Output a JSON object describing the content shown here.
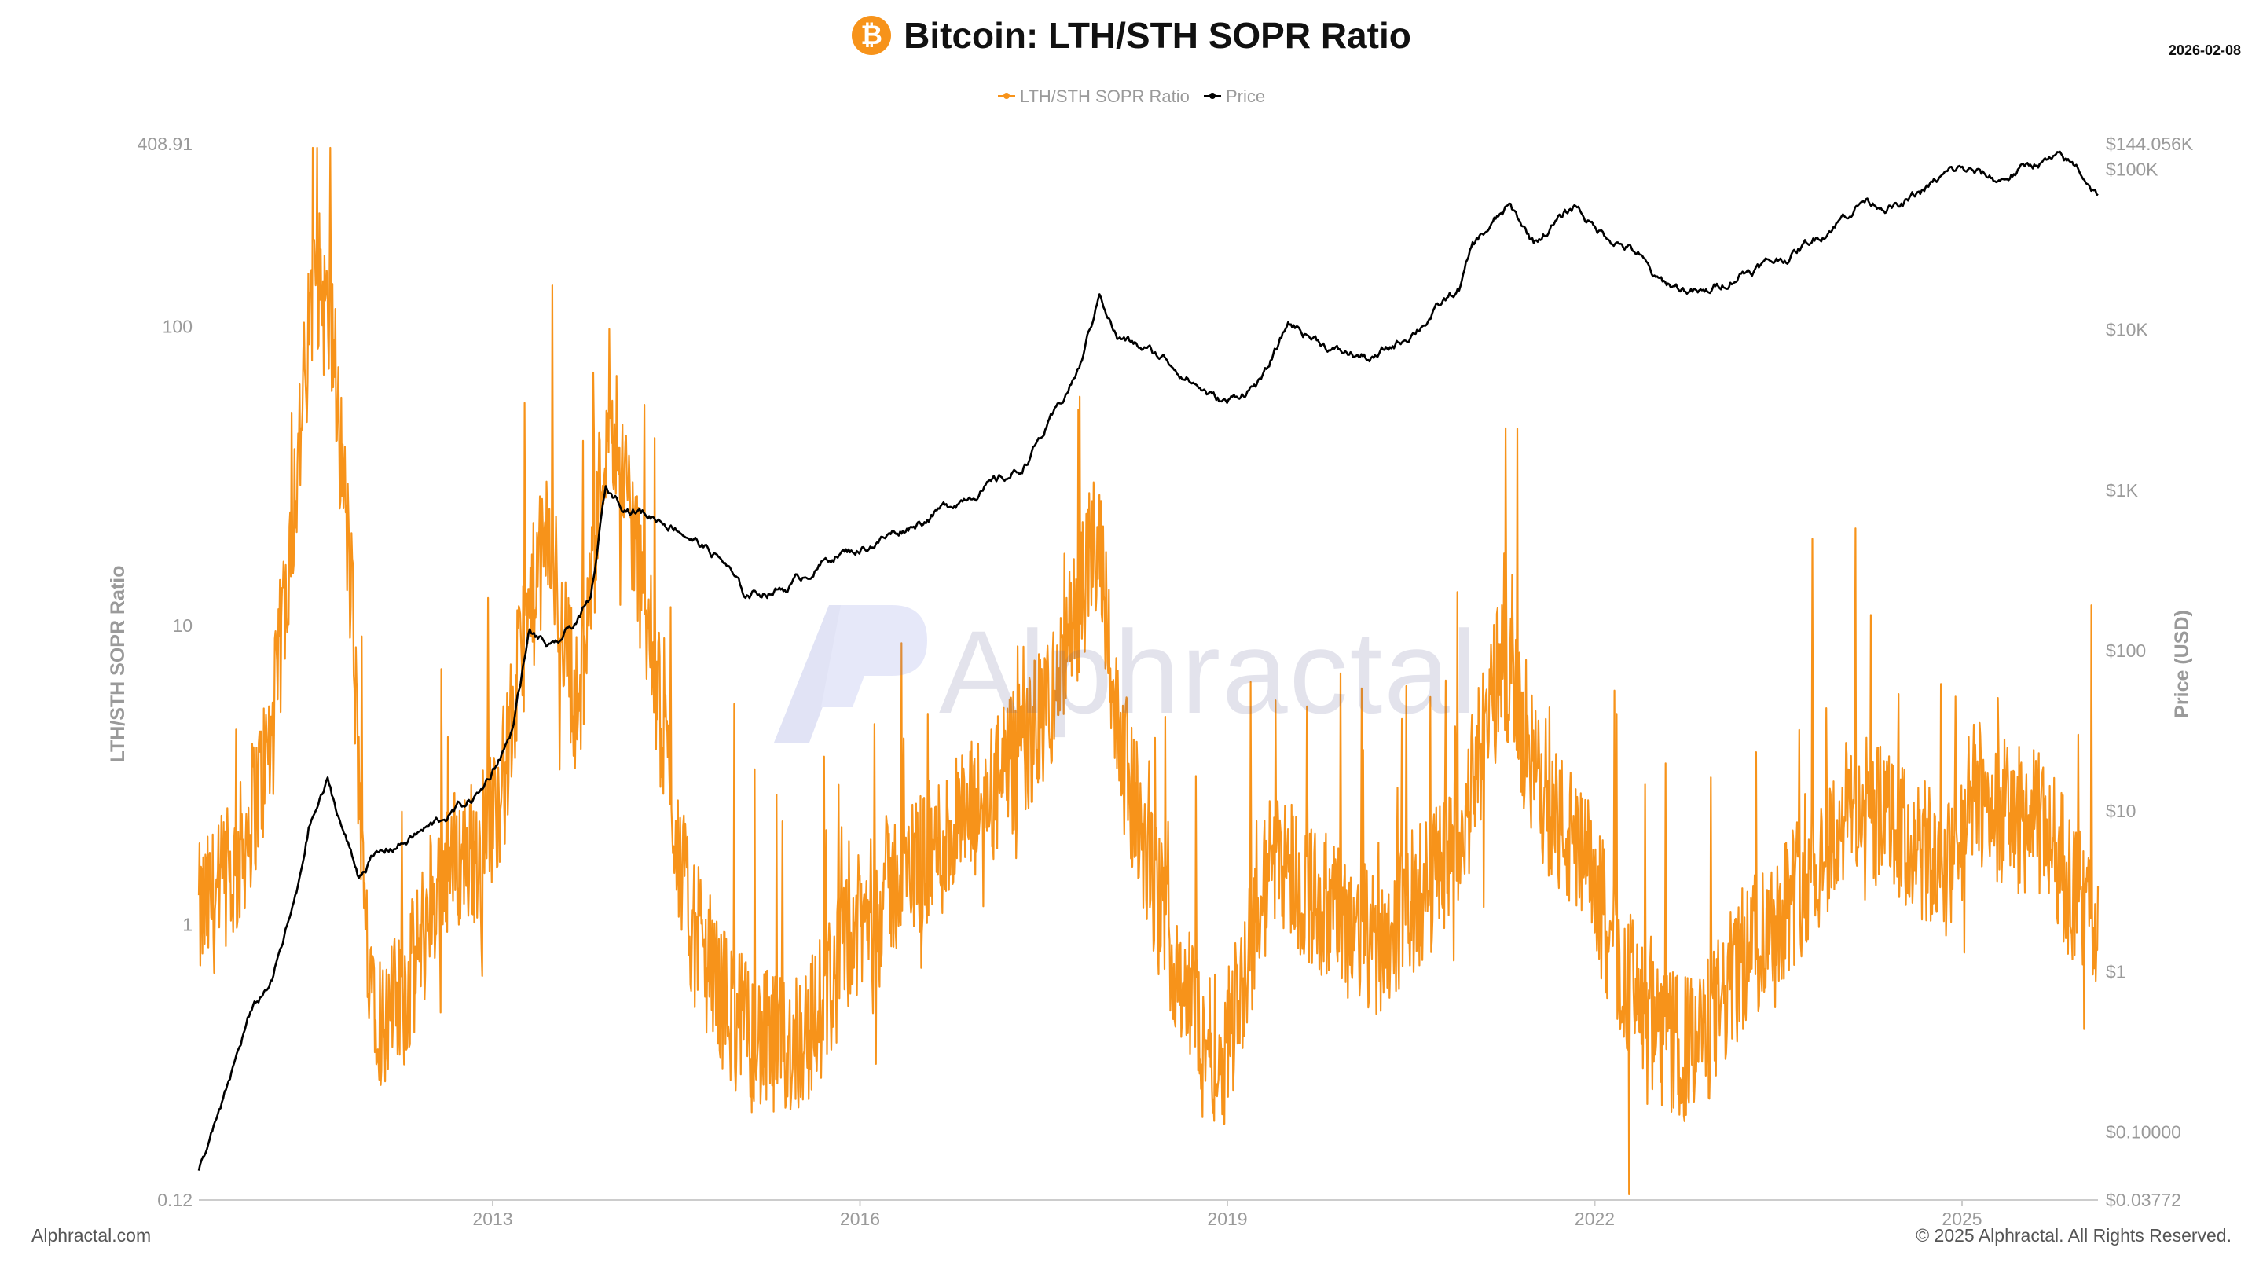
{
  "header": {
    "title": "Bitcoin: LTH/STH SOPR Ratio",
    "logo_glyph": "₿",
    "date": "2026-02-08"
  },
  "footer": {
    "left": "Alphractal.com",
    "right": "© 2025 Alphractal. All Rights Reserved."
  },
  "watermark": {
    "text": "Alphractal"
  },
  "colors": {
    "ratio": "#f7931a",
    "price": "#000000",
    "axis_text": "#9a9a9a",
    "axis_line": "#cccccc"
  },
  "chart_data": {
    "type": "line",
    "title": "Bitcoin: LTH/STH SOPR Ratio",
    "legend_position": "top-center",
    "grid": false,
    "x_axis": {
      "range": [
        2010.6,
        2026.11
      ],
      "ticks": [
        "2013",
        "2016",
        "2019",
        "2022",
        "2025"
      ],
      "tick_values": [
        2013,
        2016,
        2019,
        2022,
        2025
      ]
    },
    "y_axis_left": {
      "label": "LTH/STH SOPR Ratio",
      "scale": "log",
      "range": [
        0.12,
        408.91
      ],
      "tick_labels": [
        "408.91",
        "100",
        "10",
        "1",
        "0.12"
      ],
      "tick_values": [
        408.91,
        100,
        10,
        1,
        0.12
      ]
    },
    "y_axis_right": {
      "label": "Price (USD)",
      "scale": "log",
      "range": [
        0.03772,
        144056
      ],
      "tick_labels": [
        "$144.056K",
        "$100K",
        "$10K",
        "$1K",
        "$100",
        "$10",
        "$1",
        "$0.10000",
        "$0.03772"
      ],
      "tick_values": [
        144056,
        100000,
        10000,
        1000,
        100,
        10,
        1,
        0.1,
        0.03772
      ]
    },
    "series": [
      {
        "name": "LTH/STH SOPR Ratio",
        "axis": "left",
        "color": "#f7931a",
        "x": [
          2010.6,
          2010.9,
          2011.2,
          2011.3,
          2011.45,
          2011.55,
          2011.7,
          2011.85,
          2011.95,
          2012.1,
          2012.3,
          2012.6,
          2012.9,
          2013.1,
          2013.25,
          2013.45,
          2013.7,
          2013.95,
          2014.1,
          2014.3,
          2014.6,
          2014.9,
          2015.1,
          2015.35,
          2015.6,
          2015.9,
          2016.2,
          2016.6,
          2017.0,
          2017.3,
          2017.6,
          2017.8,
          2017.95,
          2018.1,
          2018.4,
          2018.7,
          2018.95,
          2019.1,
          2019.4,
          2019.6,
          2019.9,
          2020.2,
          2020.6,
          2020.9,
          2021.1,
          2021.25,
          2021.45,
          2021.7,
          2021.95,
          2022.2,
          2022.5,
          2022.75,
          2022.9,
          2023.2,
          2023.5,
          2023.9,
          2024.1,
          2024.3,
          2024.6,
          2024.9,
          2025.1,
          2025.4,
          2025.7,
          2025.9,
          2026.11
        ],
        "y": [
          1.05,
          1.5,
          4.2,
          12,
          55,
          160,
          85,
          12,
          1.05,
          0.45,
          0.6,
          1.6,
          1.8,
          3.2,
          9,
          20,
          5,
          60,
          28,
          8,
          1.05,
          0.55,
          0.42,
          0.38,
          0.45,
          0.85,
          1.3,
          1.75,
          2.5,
          3.6,
          6,
          12,
          22,
          4.5,
          1.3,
          0.55,
          0.35,
          0.6,
          1.9,
          1.35,
          1.05,
          0.85,
          1.3,
          2.0,
          4.2,
          8,
          3.6,
          2.2,
          1.5,
          0.75,
          0.42,
          0.38,
          0.42,
          0.75,
          1.1,
          1.8,
          2.6,
          2.3,
          1.8,
          1.5,
          2.8,
          2.3,
          2.1,
          1.3,
          0.95
        ]
      },
      {
        "name": "Price",
        "axis": "right",
        "color": "#000000",
        "x": [
          2010.6,
          2010.8,
          2011.0,
          2011.2,
          2011.4,
          2011.5,
          2011.65,
          2011.9,
          2012.0,
          2012.5,
          2012.9,
          2013.15,
          2013.3,
          2013.5,
          2013.8,
          2013.92,
          2014.1,
          2014.5,
          2014.9,
          2015.05,
          2015.4,
          2015.8,
          2016.0,
          2016.5,
          2016.9,
          2017.3,
          2017.6,
          2017.8,
          2017.96,
          2018.1,
          2018.5,
          2018.9,
          2019.0,
          2019.3,
          2019.5,
          2019.9,
          2020.2,
          2020.5,
          2020.9,
          2021.0,
          2021.3,
          2021.5,
          2021.85,
          2022.0,
          2022.35,
          2022.5,
          2022.9,
          2023.2,
          2023.6,
          2023.9,
          2024.2,
          2024.5,
          2024.9,
          2025.0,
          2025.3,
          2025.6,
          2025.8,
          2025.95,
          2026.11
        ],
        "y": [
          0.06,
          0.15,
          0.5,
          0.9,
          3,
          8,
          15,
          4,
          5,
          8,
          13,
          30,
          130,
          100,
          200,
          1000,
          800,
          600,
          350,
          220,
          250,
          400,
          430,
          650,
          950,
          1300,
          3000,
          6000,
          17000,
          9000,
          6500,
          3700,
          3500,
          5000,
          11000,
          7300,
          6500,
          9500,
          18000,
          33000,
          58000,
          35000,
          60000,
          43000,
          30000,
          20000,
          16500,
          23000,
          29000,
          42000,
          65000,
          58000,
          95000,
          100000,
          85000,
          110000,
          115000,
          100000,
          70000
        ]
      }
    ]
  }
}
